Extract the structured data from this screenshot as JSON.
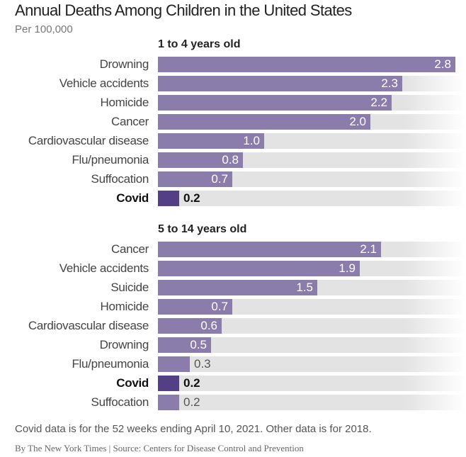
{
  "chart_data": {
    "type": "bar",
    "title": "Annual Deaths Among Children in the United States",
    "subtitle": "Per 100,000",
    "xlim": [
      0,
      2.9
    ],
    "groups": [
      {
        "name": "1 to 4 years old",
        "categories": [
          "Drowning",
          "Vehicle accidents",
          "Homicide",
          "Cancer",
          "Cardiovascular disease",
          "Flu/pneumonia",
          "Suffocation",
          "Covid"
        ],
        "values": [
          2.8,
          2.3,
          2.2,
          2.0,
          1.0,
          0.8,
          0.7,
          0.2
        ],
        "labels": [
          "2.8",
          "2.3",
          "2.2",
          "2.0",
          "1.0",
          "0.8",
          "0.7",
          "0.2"
        ],
        "highlight": "Covid"
      },
      {
        "name": "5 to 14 years old",
        "categories": [
          "Cancer",
          "Vehicle accidents",
          "Suicide",
          "Homicide",
          "Cardiovascular disease",
          "Drowning",
          "Flu/pneumonia",
          "Covid",
          "Suffocation"
        ],
        "values": [
          2.1,
          1.9,
          1.5,
          0.7,
          0.6,
          0.5,
          0.3,
          0.2,
          0.2
        ],
        "labels": [
          "2.1",
          "1.9",
          "1.5",
          "0.7",
          "0.6",
          "0.5",
          "0.3",
          "0.2",
          "0.2"
        ],
        "highlight": "Covid"
      }
    ],
    "colors": {
      "bar": "#8a7dab",
      "highlight": "#523f86",
      "track": "#e3e3e4"
    },
    "note": "Covid data is for the 52 weeks ending April 10, 2021. Other data is for 2018.",
    "credit": "By The New York Times | Source: Centers for Disease Control and Prevention"
  }
}
